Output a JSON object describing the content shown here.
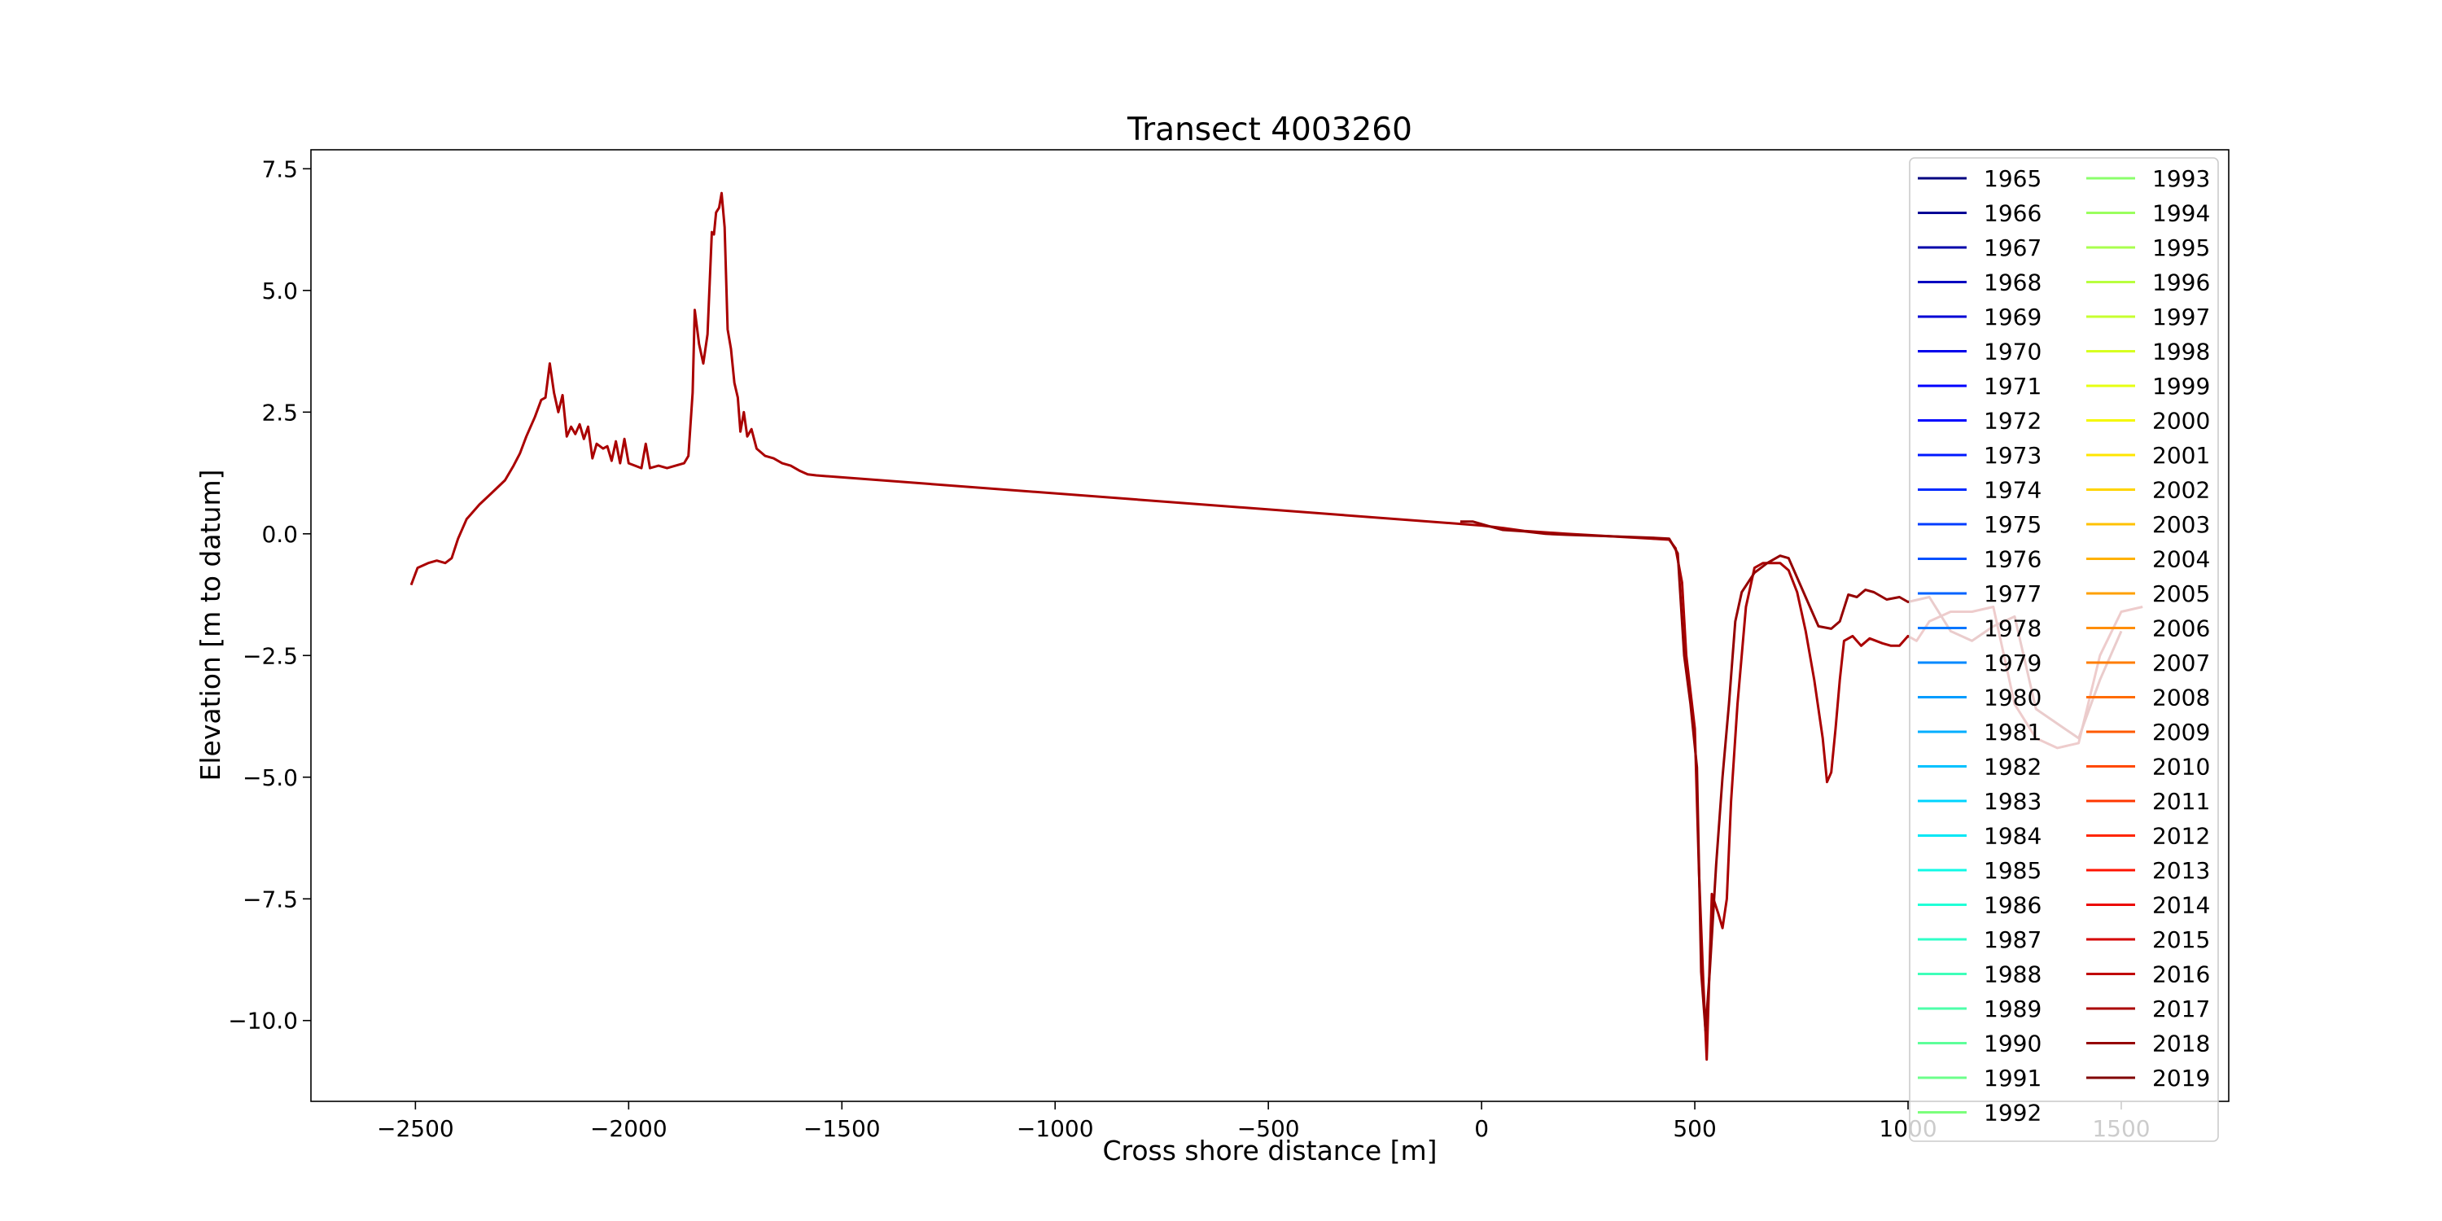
{
  "chart_data": {
    "type": "line",
    "title": "Transect 4003260",
    "x_label": "Cross shore distance [m]",
    "y_label": "Elevation [m to datum]",
    "xlim": [
      -2745,
      1752
    ],
    "ylim": [
      -11.66,
      7.89
    ],
    "xticks": [
      {
        "value": -2500,
        "label": "−2500"
      },
      {
        "value": -2000,
        "label": "−2000"
      },
      {
        "value": -1500,
        "label": "−1500"
      },
      {
        "value": -1000,
        "label": "−1000"
      },
      {
        "value": -500,
        "label": "−500"
      },
      0,
      500,
      1000,
      1500
    ],
    "yticks": [
      7.5,
      {
        "value": 5,
        "label": "5.0"
      },
      {
        "value": 2.5,
        "label": "2.5"
      },
      {
        "value": 0,
        "label": "0.0"
      },
      {
        "value": -2.5,
        "label": "−2.5"
      },
      {
        "value": -5,
        "label": "−5.0"
      },
      {
        "value": -7.5,
        "label": "−7.5"
      },
      {
        "value": -10,
        "label": "−10.0"
      }
    ],
    "grid": false,
    "legend": "upper right",
    "legend_columns": 2,
    "series": [
      {
        "name": "1965",
        "color": "#000080",
        "x": [],
        "values": []
      },
      {
        "name": "1966",
        "color": "#000095",
        "x": [],
        "values": []
      },
      {
        "name": "1967",
        "color": "#0000aa",
        "x": [],
        "values": []
      },
      {
        "name": "1968",
        "color": "#0000c0",
        "x": [],
        "values": []
      },
      {
        "name": "1969",
        "color": "#0000d5",
        "x": [],
        "values": []
      },
      {
        "name": "1970",
        "color": "#0000eb",
        "x": [],
        "values": []
      },
      {
        "name": "1971",
        "color": "#0000ff",
        "x": [],
        "values": []
      },
      {
        "name": "1972",
        "color": "#0005ff",
        "x": [],
        "values": []
      },
      {
        "name": "1973",
        "color": "#0018ff",
        "x": [],
        "values": []
      },
      {
        "name": "1974",
        "color": "#002aff",
        "x": [],
        "values": []
      },
      {
        "name": "1975",
        "color": "#003dff",
        "x": [],
        "values": []
      },
      {
        "name": "1976",
        "color": "#0050ff",
        "x": [],
        "values": []
      },
      {
        "name": "1977",
        "color": "#0063ff",
        "x": [],
        "values": []
      },
      {
        "name": "1978",
        "color": "#0076ff",
        "x": [],
        "values": []
      },
      {
        "name": "1979",
        "color": "#0089ff",
        "x": [],
        "values": []
      },
      {
        "name": "1980",
        "color": "#009cff",
        "x": [],
        "values": []
      },
      {
        "name": "1981",
        "color": "#00aeff",
        "x": [],
        "values": []
      },
      {
        "name": "1982",
        "color": "#00c1ff",
        "x": [],
        "values": []
      },
      {
        "name": "1983",
        "color": "#00d4ff",
        "x": [],
        "values": []
      },
      {
        "name": "1984",
        "color": "#02e7f5",
        "x": [],
        "values": []
      },
      {
        "name": "1985",
        "color": "#11fae6",
        "x": [],
        "values": []
      },
      {
        "name": "1986",
        "color": "#20ffd7",
        "x": [],
        "values": []
      },
      {
        "name": "1987",
        "color": "#2fffc8",
        "x": [],
        "values": []
      },
      {
        "name": "1988",
        "color": "#3effb9",
        "x": [],
        "values": []
      },
      {
        "name": "1989",
        "color": "#4dffaa",
        "x": [],
        "values": []
      },
      {
        "name": "1990",
        "color": "#5dff9a",
        "x": [],
        "values": []
      },
      {
        "name": "1991",
        "color": "#6cff8b",
        "x": [],
        "values": []
      },
      {
        "name": "1992",
        "color": "#7bff7b",
        "x": [],
        "values": []
      },
      {
        "name": "1993",
        "color": "#8bff6c",
        "x": [],
        "values": []
      },
      {
        "name": "1994",
        "color": "#9aff5d",
        "x": [],
        "values": []
      },
      {
        "name": "1995",
        "color": "#a9ff4e",
        "x": [],
        "values": []
      },
      {
        "name": "1996",
        "color": "#b8ff3e",
        "x": [],
        "values": []
      },
      {
        "name": "1997",
        "color": "#c7ff2f",
        "x": [],
        "values": []
      },
      {
        "name": "1998",
        "color": "#d7ff20",
        "x": [],
        "values": []
      },
      {
        "name": "1999",
        "color": "#e6ff11",
        "x": [],
        "values": []
      },
      {
        "name": "2000",
        "color": "#f5f802",
        "x": [],
        "values": []
      },
      {
        "name": "2001",
        "color": "#ffe600",
        "x": [],
        "values": []
      },
      {
        "name": "2002",
        "color": "#ffd400",
        "x": [],
        "values": []
      },
      {
        "name": "2003",
        "color": "#ffc200",
        "x": [],
        "values": []
      },
      {
        "name": "2004",
        "color": "#ffb100",
        "x": [],
        "values": []
      },
      {
        "name": "2005",
        "color": "#ffa000",
        "x": [],
        "values": []
      },
      {
        "name": "2006",
        "color": "#ff8e00",
        "x": [],
        "values": []
      },
      {
        "name": "2007",
        "color": "#ff7d00",
        "x": [],
        "values": []
      },
      {
        "name": "2008",
        "color": "#ff6b00",
        "x": [],
        "values": []
      },
      {
        "name": "2009",
        "color": "#ff5a00",
        "x": [],
        "values": []
      },
      {
        "name": "2010",
        "color": "#ff4800",
        "x": [],
        "values": []
      },
      {
        "name": "2011",
        "color": "#ff3700",
        "x": [],
        "values": []
      },
      {
        "name": "2012",
        "color": "#ff2500",
        "x": [],
        "values": []
      },
      {
        "name": "2013",
        "color": "#ff1400",
        "x": [],
        "values": []
      },
      {
        "name": "2014",
        "color": "#eb0300",
        "x": [],
        "values": []
      },
      {
        "name": "2015",
        "color": "#d50000",
        "x": [],
        "values": []
      },
      {
        "name": "2016",
        "color": "#c00000",
        "x": [],
        "values": []
      },
      {
        "name": "2017",
        "color": "#aa0000",
        "x": [
          -2510,
          -2495,
          -2470,
          -2450,
          -2430,
          -2415,
          -2400,
          -2380,
          -2350,
          -2320,
          -2290,
          -2270,
          -2255,
          -2240,
          -2220,
          -2205,
          -2195,
          -2185,
          -2175,
          -2165,
          -2155,
          -2145,
          -2135,
          -2125,
          -2115,
          -2105,
          -2095,
          -2085,
          -2075,
          -2060,
          -2050,
          -2040,
          -2030,
          -2020,
          -2010,
          -2000,
          -1985,
          -1970,
          -1960,
          -1950,
          -1930,
          -1910,
          -1890,
          -1870,
          -1860,
          -1850,
          -1845,
          -1835,
          -1825,
          -1815,
          -1805,
          -1800,
          -1795,
          -1788,
          -1782,
          -1775,
          -1768,
          -1760,
          -1752,
          -1744,
          -1738,
          -1730,
          -1722,
          -1712,
          -1700,
          -1680,
          -1660,
          -1640,
          -1620,
          -1600,
          -1580,
          -1560,
          0,
          50,
          100,
          200,
          300,
          400,
          440,
          455,
          470,
          480,
          500,
          510,
          520,
          528,
          540,
          555,
          565,
          575,
          585,
          600,
          620,
          640,
          660,
          700,
          720,
          740,
          760,
          780,
          800,
          810,
          820,
          830,
          840,
          850,
          870,
          890,
          910,
          940,
          960,
          980,
          1000,
          1020,
          1050,
          1100,
          1150,
          1200,
          1250,
          1300,
          1350,
          1400,
          1450,
          1500,
          1550
        ],
        "values": [
          -1.05,
          -0.7,
          -0.6,
          -0.55,
          -0.6,
          -0.5,
          -0.1,
          0.3,
          0.6,
          0.85,
          1.1,
          1.4,
          1.65,
          2.0,
          2.4,
          2.75,
          2.8,
          3.5,
          2.9,
          2.5,
          2.85,
          2.0,
          2.2,
          2.05,
          2.25,
          1.95,
          2.2,
          1.55,
          1.85,
          1.75,
          1.8,
          1.5,
          1.9,
          1.45,
          1.95,
          1.45,
          1.4,
          1.35,
          1.85,
          1.35,
          1.4,
          1.35,
          1.4,
          1.45,
          1.6,
          2.9,
          4.6,
          3.9,
          3.5,
          4.1,
          6.2,
          6.15,
          6.6,
          6.7,
          7.0,
          6.3,
          4.2,
          3.8,
          3.1,
          2.8,
          2.1,
          2.5,
          2.0,
          2.15,
          1.75,
          1.6,
          1.55,
          1.45,
          1.4,
          1.3,
          1.22,
          1.2,
          0.17,
          0.12,
          0.06,
          0.0,
          -0.05,
          -0.1,
          -0.12,
          -0.3,
          -1.0,
          -2.5,
          -4.0,
          -7.0,
          -9.2,
          -10.8,
          -7.4,
          -7.8,
          -8.1,
          -7.5,
          -5.5,
          -3.5,
          -1.5,
          -0.7,
          -0.6,
          -0.6,
          -0.75,
          -1.2,
          -2.0,
          -3.0,
          -4.2,
          -5.1,
          -4.9,
          -4.0,
          -3.0,
          -2.2,
          -2.1,
          -2.3,
          -2.15,
          -2.25,
          -2.3,
          -2.3,
          -2.1,
          -2.2,
          -1.8,
          -1.6,
          -1.6,
          -1.5,
          -3.5,
          -4.2,
          -4.4,
          -4.3,
          -2.5,
          -1.6,
          -1.5
        ]
      },
      {
        "name": "2018",
        "color": "#950000",
        "x": [
          -50,
          -20,
          0,
          20,
          50,
          100,
          150,
          200,
          300,
          400,
          440,
          460,
          475,
          490,
          505,
          515,
          525,
          535,
          550,
          565,
          580,
          595,
          610,
          640,
          670,
          700,
          720,
          740,
          770,
          790,
          820,
          840,
          860,
          880,
          900,
          920,
          950,
          980,
          1000,
          1050,
          1100,
          1150,
          1200,
          1250,
          1300,
          1350,
          1400,
          1450,
          1500
        ],
        "values": [
          0.25,
          0.25,
          0.2,
          0.15,
          0.08,
          0.05,
          0.0,
          -0.02,
          -0.05,
          -0.08,
          -0.1,
          -0.4,
          -2.5,
          -3.5,
          -4.8,
          -9.0,
          -10.2,
          -9.0,
          -6.8,
          -5.0,
          -3.5,
          -1.8,
          -1.2,
          -0.8,
          -0.6,
          -0.45,
          -0.5,
          -0.9,
          -1.5,
          -1.9,
          -1.95,
          -1.8,
          -1.25,
          -1.3,
          -1.15,
          -1.2,
          -1.35,
          -1.3,
          -1.4,
          -1.3,
          -2.0,
          -2.2,
          -1.9,
          -1.7,
          -3.6,
          -3.9,
          -4.2,
          -3.0,
          -2.0
        ]
      },
      {
        "name": "2019",
        "color": "#800000",
        "x": [],
        "values": []
      }
    ]
  }
}
